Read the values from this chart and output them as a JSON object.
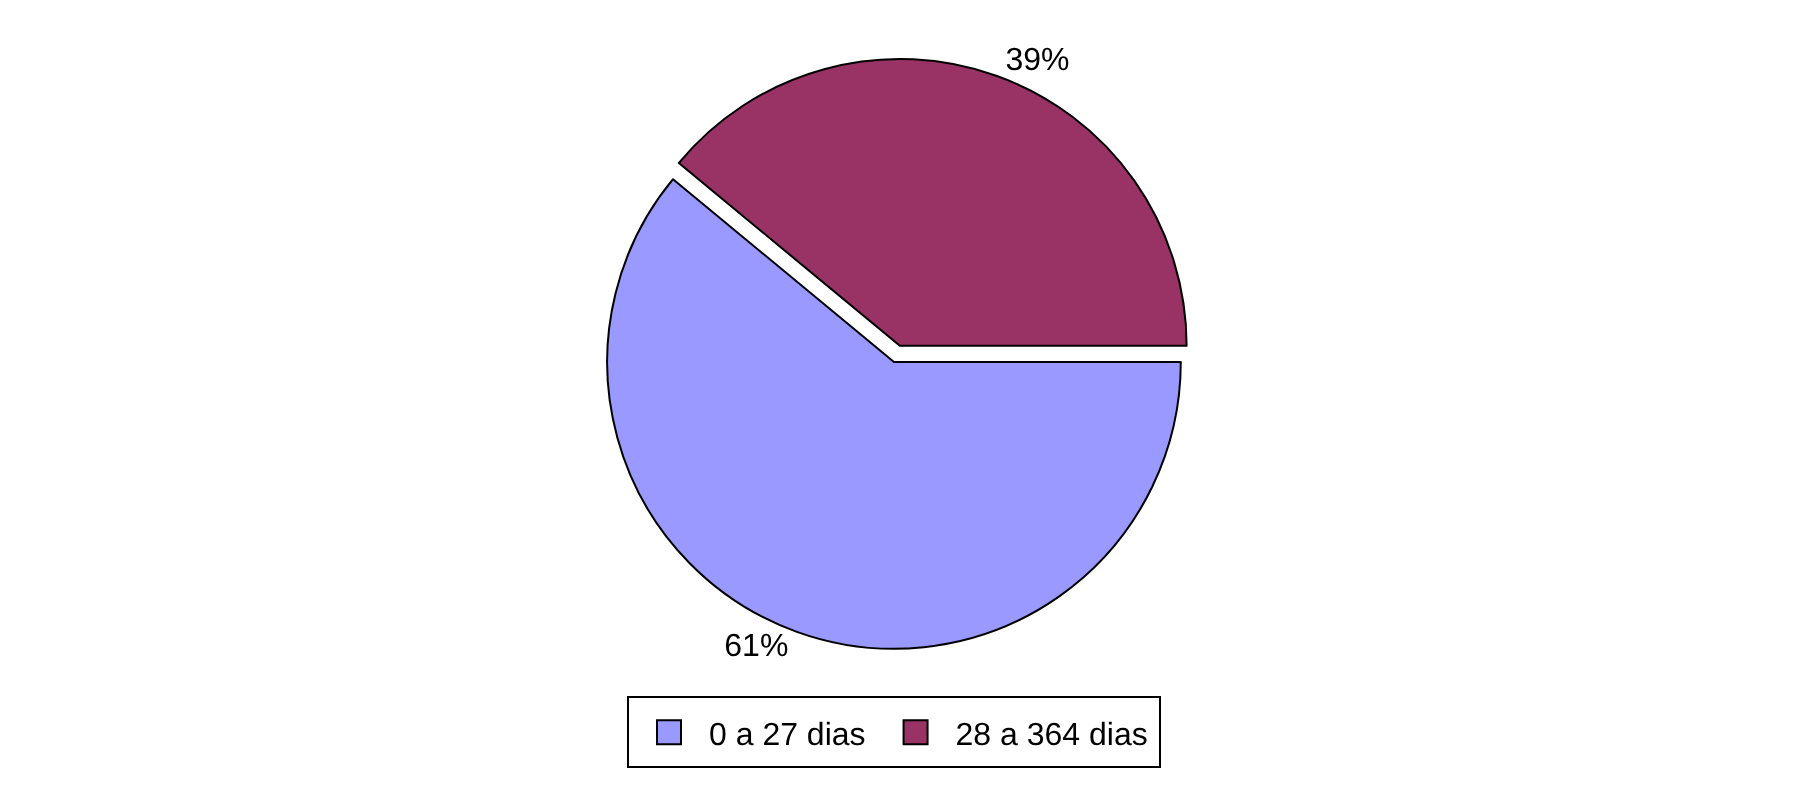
{
  "chart_data": {
    "type": "pie",
    "categories": [
      "0 a 27 dias",
      "28 a 364 dias"
    ],
    "values": [
      61,
      39
    ],
    "colors": [
      "#9999ff",
      "#993366"
    ],
    "value_labels": [
      "61%",
      "39%"
    ],
    "legend": "bottom"
  }
}
